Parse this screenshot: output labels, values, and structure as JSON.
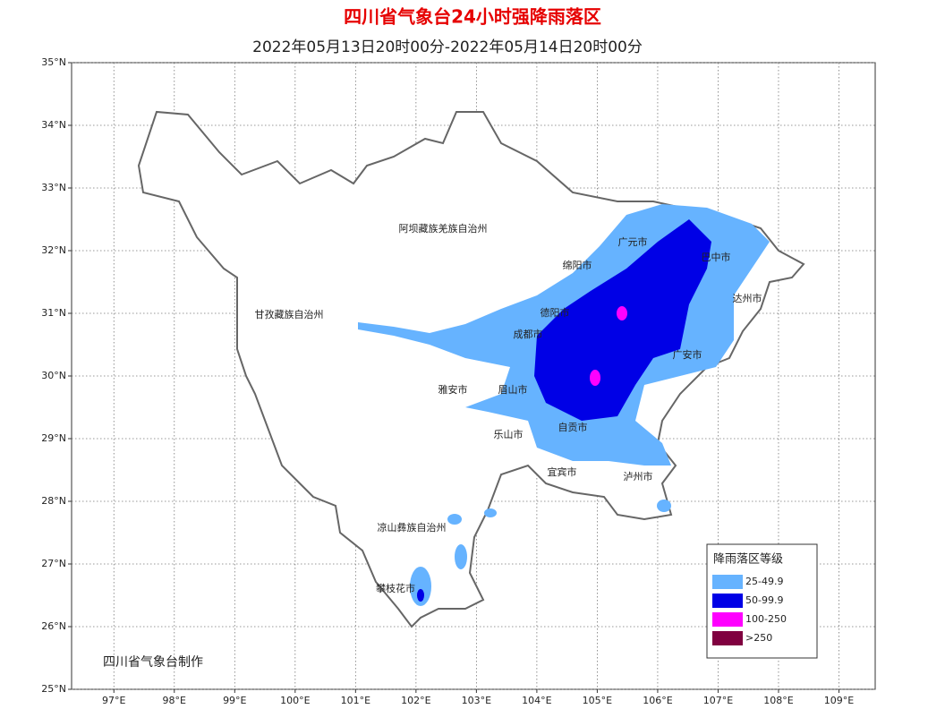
{
  "header": {
    "title": "四川省气象台24小时强降雨落区",
    "subtitle": "2022年05月13日20时00分-2022年05月14日20时00分"
  },
  "map": {
    "lon_range": [
      96.3,
      109.6
    ],
    "lat_range": [
      25,
      35
    ],
    "lat_ticks": [
      {
        "value": 35,
        "label": "35°N"
      },
      {
        "value": 34,
        "label": "34°N"
      },
      {
        "value": 33,
        "label": "33°N"
      },
      {
        "value": 32,
        "label": "32°N"
      },
      {
        "value": 31,
        "label": "31°N"
      },
      {
        "value": 30,
        "label": "30°N"
      },
      {
        "value": 29,
        "label": "29°N"
      },
      {
        "value": 28,
        "label": "28°N"
      },
      {
        "value": 27,
        "label": "27°N"
      },
      {
        "value": 26,
        "label": "26°N"
      },
      {
        "value": 25,
        "label": "25°N"
      }
    ],
    "lon_ticks": [
      {
        "value": 97,
        "label": "97°E"
      },
      {
        "value": 98,
        "label": "98°E"
      },
      {
        "value": 99,
        "label": "99°E"
      },
      {
        "value": 100,
        "label": "100°E"
      },
      {
        "value": 101,
        "label": "101°E"
      },
      {
        "value": 102,
        "label": "102°E"
      },
      {
        "value": 103,
        "label": "103°E"
      },
      {
        "value": 104,
        "label": "104°E"
      },
      {
        "value": 105,
        "label": "105°E"
      },
      {
        "value": 106,
        "label": "106°E"
      },
      {
        "value": 107,
        "label": "107°E"
      },
      {
        "value": 108,
        "label": "108°E"
      },
      {
        "value": 109,
        "label": "109°E"
      }
    ],
    "regions": [
      "阿坝藏族羌族自治州",
      "甘孜藏族自治州",
      "广元市",
      "巴中市",
      "达州市",
      "绵阳市",
      "德阳市",
      "成都市",
      "雅安市",
      "眉山市",
      "乐山市",
      "自贡市",
      "宜宾市",
      "泸州市",
      "广安市",
      "凉山彝族自治州",
      "攀枝花市"
    ]
  },
  "legend": {
    "title": "降雨落区等级",
    "items": [
      {
        "label": "25-49.9",
        "color": "#66b3ff"
      },
      {
        "label": "50-99.9",
        "color": "#0000e6"
      },
      {
        "label": "100-250",
        "color": "#ff00ff"
      },
      {
        "label": ">250",
        "color": "#800040"
      }
    ]
  },
  "footer": "四川省气象台制作"
}
